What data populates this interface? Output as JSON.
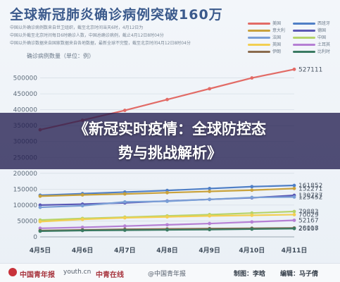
{
  "header": {
    "title": "全球新冠肺炎确诊病例突破160万",
    "notes": [
      "中国以外确诊病例数来自世卫组织，截至北京时间当天6时，4月12日为",
      "中国以外截至北京时间每日6时确诊人数，中国总确诊病例，截止4月12日8时04分",
      "中国以外确诊数据来自国家数据来自各地数据，最新全球不完整，截至北京时间4月12日8时04分"
    ],
    "unit": "确诊病例数量（单位：例）"
  },
  "banner": {
    "line1": "《新冠实时疫情：全球防控态",
    "line2": "势与挑战解析》"
  },
  "footer": {
    "brand1": "中国青年报",
    "brand2": "youth.cn",
    "brand3": "中青在线",
    "source": "@中国青年报",
    "credit1": "制图：李晗",
    "credit2": "编辑：马子倩"
  },
  "chart_data": {
    "type": "line",
    "categories": [
      "4月5日",
      "4月6日",
      "4月7日",
      "4月8日",
      "4月9日",
      "4月10日",
      "4月11日"
    ],
    "ylim": [
      0,
      550000
    ],
    "yticks": [
      0,
      50000,
      100000,
      150000,
      200000,
      250000,
      300000,
      350000,
      400000,
      450000,
      500000
    ],
    "ytick_labels": [
      "0",
      "50000",
      "100000",
      "150000",
      "200000",
      "250000",
      "300000",
      "350000",
      "400000",
      "450000",
      "500000"
    ],
    "grid": true,
    "legend_position": "top-right",
    "series": [
      {
        "name": "美国",
        "color": "#e26b66",
        "values": [
          337000,
          367000,
          398000,
          432000,
          466000,
          500000,
          527111
        ],
        "end_label": "527111"
      },
      {
        "name": "西班牙",
        "color": "#4f7fc6",
        "values": [
          131000,
          136000,
          141000,
          146000,
          152000,
          158000,
          161852
        ],
        "end_label": "161852"
      },
      {
        "name": "意大利",
        "color": "#c9a23c",
        "values": [
          128000,
          132000,
          135000,
          139000,
          143000,
          147000,
          152271
        ],
        "end_label": "152271"
      },
      {
        "name": "德国",
        "color": "#5a58b5",
        "values": [
          100000,
          103000,
          107000,
          113000,
          118000,
          123000,
          130727
        ],
        "end_label": "130727"
      },
      {
        "name": "法国",
        "color": "#7a9fd6",
        "values": [
          93000,
          98000,
          110000,
          112000,
          118000,
          124000,
          125452
        ],
        "end_label": "125452"
      },
      {
        "name": "中国",
        "color": "#b5d36a",
        "values": [
          53000,
          58000,
          62000,
          66000,
          70000,
          75000,
          79883
        ],
        "end_label": "79883"
      },
      {
        "name": "英国",
        "color": "#f2cf52",
        "values": [
          48000,
          55000,
          60000,
          63000,
          66000,
          68000,
          70029
        ],
        "end_label": "70029"
      },
      {
        "name": "土耳其",
        "color": "#b57fd4",
        "values": [
          27000,
          30000,
          34000,
          38000,
          42000,
          47000,
          52167
        ],
        "end_label": "52167"
      },
      {
        "name": "伊朗",
        "color": "#8a6b4e",
        "values": [
          20000,
          22000,
          24000,
          25000,
          26000,
          27000,
          28018
        ],
        "end_label": "28018"
      },
      {
        "name": "比利时",
        "color": "#3a7a62",
        "values": [
          18000,
          20000,
          21000,
          22000,
          23000,
          24500,
          26107
        ],
        "end_label": "26107"
      }
    ]
  }
}
